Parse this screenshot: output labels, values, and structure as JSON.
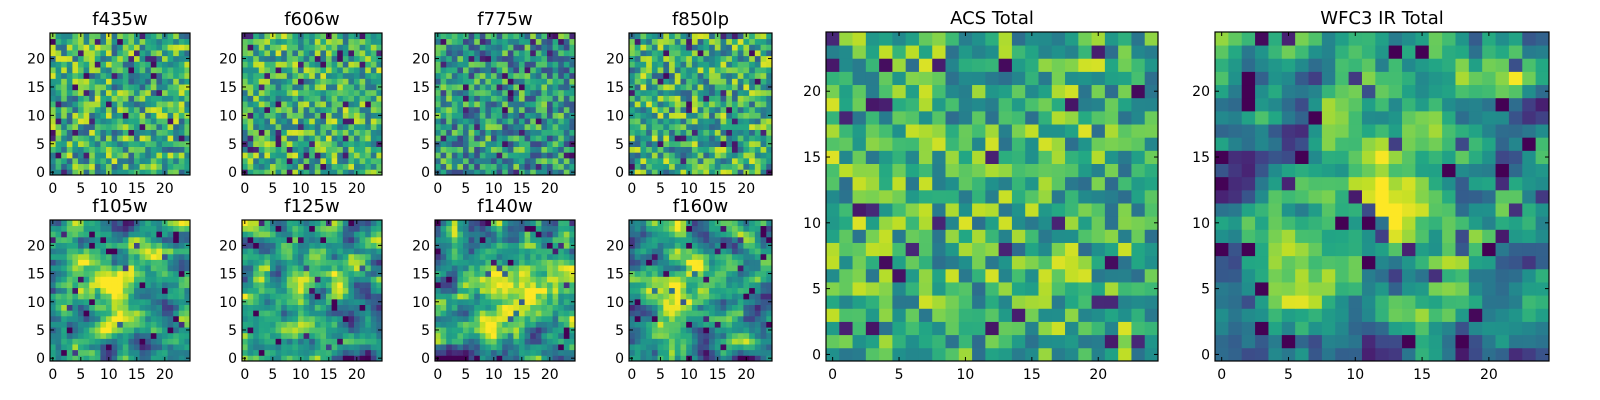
{
  "chart_data": [
    {
      "type": "heatmap",
      "title": "f435w",
      "xticks": [
        0,
        5,
        10,
        15,
        20
      ],
      "yticks": [
        0,
        5,
        10,
        15,
        20
      ],
      "xlim": [
        -0.5,
        24.5
      ],
      "ylim": [
        -0.5,
        24.5
      ],
      "pixels": 25,
      "colormap": "viridis",
      "pattern": "noise",
      "seed": 11
    },
    {
      "type": "heatmap",
      "title": "f606w",
      "xticks": [
        0,
        5,
        10,
        15,
        20
      ],
      "yticks": [
        0,
        5,
        10,
        15,
        20
      ],
      "xlim": [
        -0.5,
        24.5
      ],
      "ylim": [
        -0.5,
        24.5
      ],
      "pixels": 25,
      "colormap": "viridis",
      "pattern": "noise-bright",
      "seed": 23
    },
    {
      "type": "heatmap",
      "title": "f775w",
      "xticks": [
        0,
        5,
        10,
        15,
        20
      ],
      "yticks": [
        0,
        5,
        10,
        15,
        20
      ],
      "xlim": [
        -0.5,
        24.5
      ],
      "ylim": [
        -0.5,
        24.5
      ],
      "pixels": 25,
      "colormap": "viridis",
      "pattern": "noise-dark",
      "seed": 37
    },
    {
      "type": "heatmap",
      "title": "f850lp",
      "xticks": [
        0,
        5,
        10,
        15,
        20
      ],
      "yticks": [
        0,
        5,
        10,
        15,
        20
      ],
      "xlim": [
        -0.5,
        24.5
      ],
      "ylim": [
        -0.5,
        24.5
      ],
      "pixels": 25,
      "colormap": "viridis",
      "pattern": "noise",
      "seed": 41
    },
    {
      "type": "heatmap",
      "title": "ACS Total",
      "xticks": [
        0,
        5,
        10,
        15,
        20
      ],
      "yticks": [
        0,
        5,
        10,
        15,
        20
      ],
      "xlim": [
        -0.5,
        24.5
      ],
      "ylim": [
        -0.5,
        24.5
      ],
      "pixels": 25,
      "colormap": "viridis",
      "pattern": "noise-bright",
      "seed": 53
    },
    {
      "type": "heatmap",
      "title": "WFC3 IR Total",
      "xticks": [
        0,
        5,
        10,
        15,
        20
      ],
      "yticks": [
        0,
        5,
        10,
        15,
        20
      ],
      "xlim": [
        -0.5,
        24.5
      ],
      "ylim": [
        -0.5,
        24.5
      ],
      "pixels": 25,
      "colormap": "viridis",
      "pattern": "smooth-blob",
      "seed": 67
    },
    {
      "type": "heatmap",
      "title": "f105w",
      "xticks": [
        0,
        5,
        10,
        15,
        20
      ],
      "yticks": [
        0,
        5,
        10,
        15,
        20
      ],
      "xlim": [
        -0.5,
        24.5
      ],
      "ylim": [
        -0.5,
        24.5
      ],
      "pixels": 25,
      "colormap": "viridis",
      "pattern": "smooth-blob",
      "seed": 71
    },
    {
      "type": "heatmap",
      "title": "f125w",
      "xticks": [
        0,
        5,
        10,
        15,
        20
      ],
      "yticks": [
        0,
        5,
        10,
        15,
        20
      ],
      "xlim": [
        -0.5,
        24.5
      ],
      "ylim": [
        -0.5,
        24.5
      ],
      "pixels": 25,
      "colormap": "viridis",
      "pattern": "smooth-blob",
      "seed": 83
    },
    {
      "type": "heatmap",
      "title": "f140w",
      "xticks": [
        0,
        5,
        10,
        15,
        20
      ],
      "yticks": [
        0,
        5,
        10,
        15,
        20
      ],
      "xlim": [
        -0.5,
        24.5
      ],
      "ylim": [
        -0.5,
        24.5
      ],
      "pixels": 25,
      "colormap": "viridis",
      "pattern": "smooth-blob",
      "seed": 97
    },
    {
      "type": "heatmap",
      "title": "f160w",
      "xticks": [
        0,
        5,
        10,
        15,
        20
      ],
      "yticks": [
        0,
        5,
        10,
        15,
        20
      ],
      "xlim": [
        -0.5,
        24.5
      ],
      "ylim": [
        -0.5,
        24.5
      ],
      "pixels": 25,
      "colormap": "viridis",
      "pattern": "smooth-blob",
      "seed": 101
    }
  ]
}
